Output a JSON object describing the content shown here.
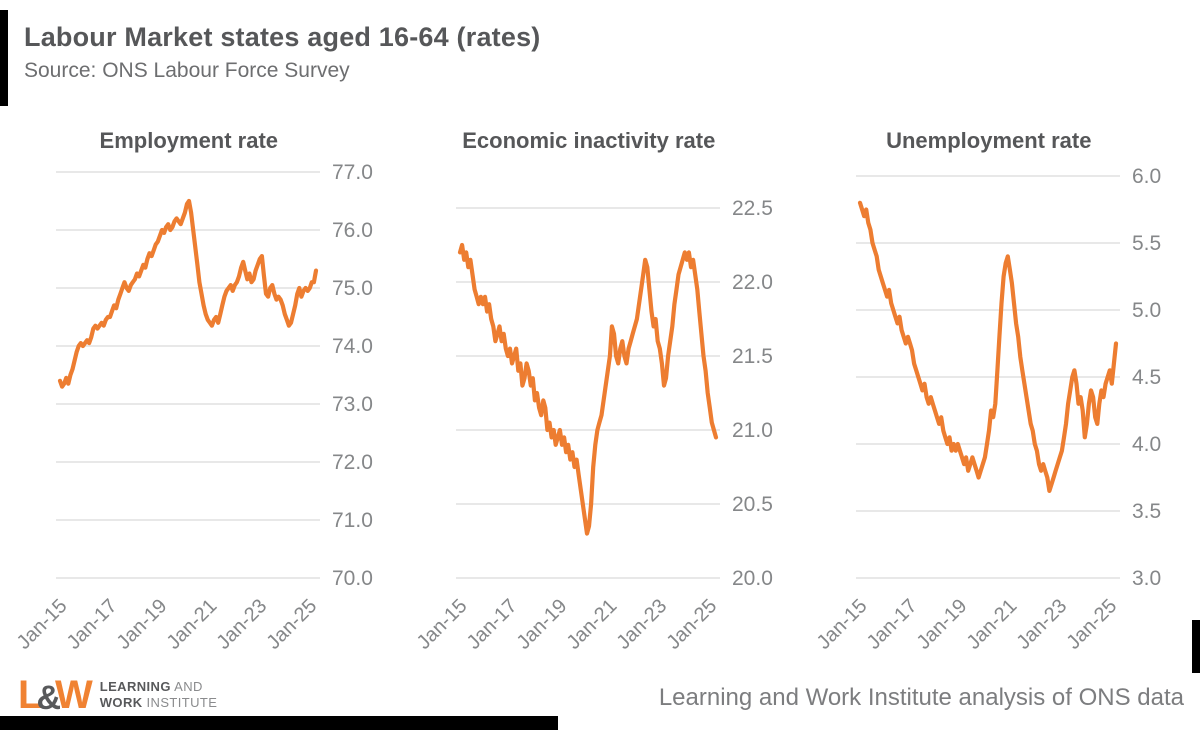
{
  "header": {
    "title": "Labour Market states aged 16-64 (rates)",
    "subtitle": "Source: ONS Labour Force Survey"
  },
  "footer": {
    "logo": {
      "mark_l": "L",
      "mark_amp": "&",
      "mark_w": "W",
      "line1_bold": "LEARNING",
      "line1_rest": " AND",
      "line2_bold": "WORK",
      "line2_rest": " INSTITUTE"
    },
    "credit": "Learning and Work Institute analysis of ONS data"
  },
  "colors": {
    "line": "#ed7d31",
    "grid": "#d9d9d9",
    "title_text": "#565759",
    "axis_text": "#858789",
    "logo_orange": "#f08232",
    "logo_gray": "#58595b",
    "accent": "#000000"
  },
  "chart_data": [
    {
      "type": "line",
      "title": "Employment rate",
      "x_start": "Jan-2015",
      "x_freq": "monthly",
      "x_tick_labels": [
        "Jan-15",
        "Jan-17",
        "Jan-19",
        "Jan-21",
        "Jan-23",
        "Jan-25"
      ],
      "ylim": [
        70,
        77
      ],
      "ytick_labels": [
        "77.0",
        "76.0",
        "75.0",
        "74.0",
        "73.0",
        "72.0",
        "71.0",
        "70.0"
      ],
      "legend": "none",
      "grid": "horizontal",
      "values": [
        73.4,
        73.3,
        73.35,
        73.45,
        73.35,
        73.5,
        73.6,
        73.75,
        73.9,
        74.0,
        74.05,
        74.0,
        74.05,
        74.1,
        74.05,
        74.15,
        74.3,
        74.35,
        74.3,
        74.35,
        74.4,
        74.35,
        74.45,
        74.5,
        74.5,
        74.6,
        74.7,
        74.65,
        74.8,
        74.9,
        75.0,
        75.1,
        75.0,
        74.95,
        75.05,
        75.1,
        75.15,
        75.25,
        75.2,
        75.3,
        75.4,
        75.35,
        75.5,
        75.6,
        75.55,
        75.65,
        75.75,
        75.8,
        75.9,
        76.0,
        75.95,
        76.05,
        76.1,
        76.0,
        76.05,
        76.15,
        76.2,
        76.15,
        76.1,
        76.2,
        76.3,
        76.45,
        76.5,
        76.3,
        76.0,
        75.7,
        75.4,
        75.1,
        74.9,
        74.7,
        74.55,
        74.45,
        74.4,
        74.35,
        74.45,
        74.5,
        74.4,
        74.55,
        74.7,
        74.85,
        74.95,
        75.0,
        75.05,
        74.95,
        75.05,
        75.1,
        75.2,
        75.35,
        75.45,
        75.3,
        75.15,
        75.25,
        75.1,
        75.15,
        75.3,
        75.4,
        75.5,
        75.55,
        75.2,
        74.9,
        74.85,
        75.0,
        75.05,
        74.9,
        74.8,
        74.85,
        74.8,
        74.7,
        74.55,
        74.45,
        74.35,
        74.4,
        74.55,
        74.7,
        74.9,
        75.0,
        74.85,
        74.95,
        75.0,
        74.95,
        75.0,
        75.1,
        75.1,
        75.3
      ]
    },
    {
      "type": "line",
      "title": "Economic inactivity rate",
      "x_start": "Jan-2015",
      "x_freq": "monthly",
      "x_tick_labels": [
        "Jan-15",
        "Jan-17",
        "Jan-19",
        "Jan-21",
        "Jan-23",
        "Jan-25"
      ],
      "ylim": [
        20,
        22.5
      ],
      "ytick_labels": [
        "22.5",
        "22.0",
        "21.5",
        "21.0",
        "20.5",
        "20.0"
      ],
      "legend": "none",
      "grid": "horizontal",
      "values": [
        22.2,
        22.25,
        22.15,
        22.2,
        22.1,
        22.15,
        22.05,
        21.95,
        21.9,
        21.85,
        21.9,
        21.85,
        21.9,
        21.8,
        21.85,
        21.75,
        21.7,
        21.6,
        21.65,
        21.7,
        21.6,
        21.65,
        21.55,
        21.5,
        21.55,
        21.45,
        21.5,
        21.55,
        21.4,
        21.45,
        21.3,
        21.35,
        21.45,
        21.4,
        21.3,
        21.35,
        21.2,
        21.25,
        21.15,
        21.1,
        21.2,
        21.15,
        21.0,
        21.05,
        20.95,
        21.0,
        20.9,
        20.95,
        21.0,
        20.9,
        20.95,
        20.85,
        20.9,
        20.8,
        20.85,
        20.75,
        20.8,
        20.7,
        20.6,
        20.5,
        20.4,
        20.3,
        20.35,
        20.5,
        20.75,
        20.9,
        21.0,
        21.05,
        21.1,
        21.2,
        21.3,
        21.4,
        21.5,
        21.7,
        21.65,
        21.5,
        21.45,
        21.55,
        21.6,
        21.5,
        21.45,
        21.55,
        21.6,
        21.65,
        21.7,
        21.75,
        21.85,
        21.95,
        22.05,
        22.15,
        22.1,
        21.95,
        21.8,
        21.7,
        21.75,
        21.6,
        21.55,
        21.45,
        21.3,
        21.35,
        21.5,
        21.6,
        21.7,
        21.85,
        21.95,
        22.05,
        22.1,
        22.15,
        22.2,
        22.15,
        22.2,
        22.1,
        22.15,
        22.05,
        21.95,
        21.8,
        21.65,
        21.5,
        21.4,
        21.25,
        21.15,
        21.05,
        21.0,
        20.95
      ]
    },
    {
      "type": "line",
      "title": "Unemployment rate",
      "x_start": "Jan-2015",
      "x_freq": "monthly",
      "x_tick_labels": [
        "Jan-15",
        "Jan-17",
        "Jan-19",
        "Jan-21",
        "Jan-23",
        "Jan-25"
      ],
      "ylim": [
        3,
        6
      ],
      "ytick_labels": [
        "6.0",
        "5.5",
        "5.0",
        "4.5",
        "4.0",
        "3.5",
        "3.0"
      ],
      "legend": "none",
      "grid": "horizontal",
      "values": [
        5.8,
        5.75,
        5.7,
        5.75,
        5.65,
        5.6,
        5.5,
        5.45,
        5.4,
        5.3,
        5.25,
        5.2,
        5.15,
        5.1,
        5.15,
        5.05,
        5.0,
        4.95,
        4.9,
        4.95,
        4.85,
        4.8,
        4.75,
        4.8,
        4.75,
        4.7,
        4.6,
        4.55,
        4.5,
        4.45,
        4.4,
        4.45,
        4.35,
        4.3,
        4.35,
        4.3,
        4.25,
        4.2,
        4.15,
        4.2,
        4.1,
        4.05,
        4.0,
        4.05,
        3.95,
        4.0,
        3.95,
        4.0,
        3.95,
        3.9,
        3.85,
        3.9,
        3.8,
        3.85,
        3.9,
        3.85,
        3.8,
        3.75,
        3.8,
        3.85,
        3.9,
        4.0,
        4.1,
        4.25,
        4.2,
        4.3,
        4.55,
        4.8,
        5.05,
        5.25,
        5.35,
        5.4,
        5.3,
        5.2,
        5.05,
        4.9,
        4.8,
        4.65,
        4.55,
        4.45,
        4.35,
        4.25,
        4.15,
        4.1,
        4.0,
        3.95,
        3.85,
        3.8,
        3.85,
        3.8,
        3.75,
        3.65,
        3.7,
        3.75,
        3.8,
        3.85,
        3.9,
        3.95,
        4.05,
        4.15,
        4.3,
        4.4,
        4.5,
        4.55,
        4.45,
        4.3,
        4.35,
        4.25,
        4.05,
        4.15,
        4.3,
        4.4,
        4.35,
        4.2,
        4.15,
        4.3,
        4.4,
        4.35,
        4.45,
        4.5,
        4.55,
        4.45,
        4.6,
        4.75
      ]
    }
  ]
}
